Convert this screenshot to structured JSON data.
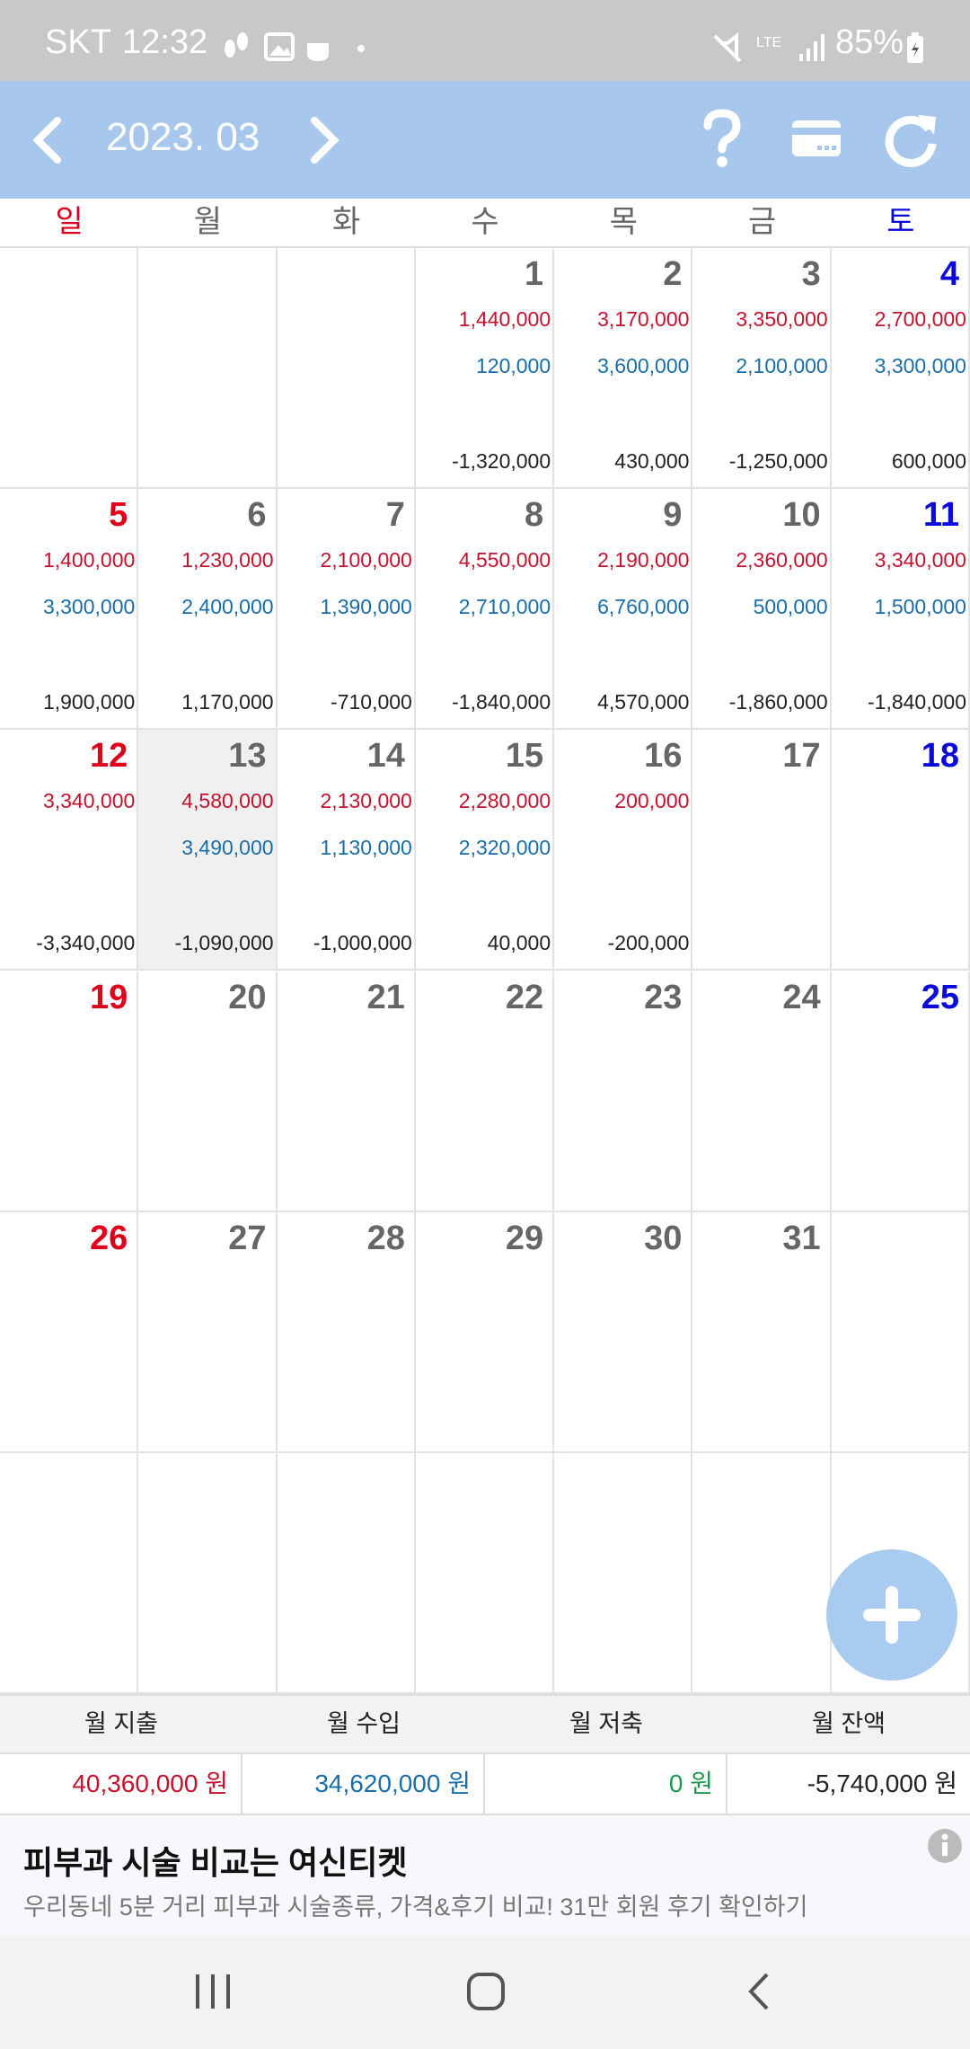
{
  "status_bar": {
    "carrier": "SKT",
    "time": "12:32",
    "battery": "85%"
  },
  "header": {
    "month": "2023. 03"
  },
  "weekdays": [
    "일",
    "월",
    "화",
    "수",
    "목",
    "금",
    "토"
  ],
  "calendar": {
    "weeks": [
      [
        null,
        null,
        null,
        {
          "day": 1,
          "expense": "1,440,000",
          "income": "120,000",
          "balance": "-1,320,000"
        },
        {
          "day": 2,
          "expense": "3,170,000",
          "income": "3,600,000",
          "balance": "430,000"
        },
        {
          "day": 3,
          "expense": "3,350,000",
          "income": "2,100,000",
          "balance": "-1,250,000"
        },
        {
          "day": 4,
          "expense": "2,700,000",
          "income": "3,300,000",
          "balance": "600,000"
        }
      ],
      [
        {
          "day": 5,
          "expense": "1,400,000",
          "income": "3,300,000",
          "balance": "1,900,000"
        },
        {
          "day": 6,
          "expense": "1,230,000",
          "income": "2,400,000",
          "balance": "1,170,000"
        },
        {
          "day": 7,
          "expense": "2,100,000",
          "income": "1,390,000",
          "balance": "-710,000"
        },
        {
          "day": 8,
          "expense": "4,550,000",
          "income": "2,710,000",
          "balance": "-1,840,000"
        },
        {
          "day": 9,
          "expense": "2,190,000",
          "income": "6,760,000",
          "balance": "4,570,000"
        },
        {
          "day": 10,
          "expense": "2,360,000",
          "income": "500,000",
          "balance": "-1,860,000"
        },
        {
          "day": 11,
          "expense": "3,340,000",
          "income": "1,500,000",
          "balance": "-1,840,000"
        }
      ],
      [
        {
          "day": 12,
          "expense": "3,340,000",
          "balance": "-3,340,000"
        },
        {
          "day": 13,
          "expense": "4,580,000",
          "income": "3,490,000",
          "balance": "-1,090,000",
          "today": true
        },
        {
          "day": 14,
          "expense": "2,130,000",
          "income": "1,130,000",
          "balance": "-1,000,000"
        },
        {
          "day": 15,
          "expense": "2,280,000",
          "income": "2,320,000",
          "balance": "40,000"
        },
        {
          "day": 16,
          "expense": "200,000",
          "balance": "-200,000"
        },
        {
          "day": 17
        },
        {
          "day": 18
        }
      ],
      [
        {
          "day": 19
        },
        {
          "day": 20
        },
        {
          "day": 21
        },
        {
          "day": 22
        },
        {
          "day": 23
        },
        {
          "day": 24
        },
        {
          "day": 25
        }
      ],
      [
        {
          "day": 26
        },
        {
          "day": 27
        },
        {
          "day": 28
        },
        {
          "day": 29
        },
        {
          "day": 30
        },
        {
          "day": 31
        },
        null
      ],
      [
        null,
        null,
        null,
        null,
        null,
        null,
        null
      ]
    ]
  },
  "summary": {
    "labels": [
      "월 지출",
      "월 수입",
      "월 저축",
      "월 잔액"
    ],
    "values": [
      "40,360,000 원",
      "34,620,000 원",
      "0 원",
      "-5,740,000 원"
    ]
  },
  "ad": {
    "title": "피부과 시술 비교는 여신티켓",
    "text": "우리동네 5분 거리 피부과 시술종류, 가격&후기 비교! 31만 회원 후기 확인하기"
  }
}
